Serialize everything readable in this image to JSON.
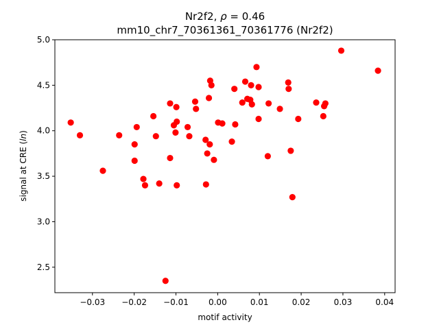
{
  "chart_data": {
    "type": "scatter",
    "title": "Nr2f2, ρ = 0.46",
    "subtitle": "mm10_chr7_70361361_70361776 (Nr2f2)",
    "xlabel": "motif activity",
    "ylabel": "signal at CRE (ln)",
    "xlim": [
      -0.039,
      0.0425
    ],
    "ylim": [
      2.22,
      5.0
    ],
    "xticks": [
      -0.03,
      -0.02,
      -0.01,
      0.0,
      0.01,
      0.02,
      0.03,
      0.04
    ],
    "xtick_labels": [
      "−0.03",
      "−0.02",
      "−0.01",
      "0.00",
      "0.01",
      "0.02",
      "0.03",
      "0.04"
    ],
    "yticks": [
      2.5,
      3.0,
      3.5,
      4.0,
      4.5,
      5.0
    ],
    "ytick_labels": [
      "2.5",
      "3.0",
      "3.5",
      "4.0",
      "4.5",
      "5.0"
    ],
    "grid": false,
    "marker_color": "#ff0000",
    "points": [
      {
        "x": -0.0352,
        "y": 4.09
      },
      {
        "x": -0.033,
        "y": 3.95
      },
      {
        "x": -0.0275,
        "y": 3.56
      },
      {
        "x": -0.0236,
        "y": 3.95
      },
      {
        "x": -0.0199,
        "y": 3.85
      },
      {
        "x": -0.0199,
        "y": 3.67
      },
      {
        "x": -0.0194,
        "y": 4.04
      },
      {
        "x": -0.0178,
        "y": 3.47
      },
      {
        "x": -0.0174,
        "y": 3.4
      },
      {
        "x": -0.0154,
        "y": 4.16
      },
      {
        "x": -0.0148,
        "y": 3.94
      },
      {
        "x": -0.014,
        "y": 3.42
      },
      {
        "x": -0.0125,
        "y": 2.35
      },
      {
        "x": -0.0114,
        "y": 4.3
      },
      {
        "x": -0.0114,
        "y": 3.7
      },
      {
        "x": -0.0105,
        "y": 4.06
      },
      {
        "x": -0.0101,
        "y": 3.98
      },
      {
        "x": -0.0099,
        "y": 4.26
      },
      {
        "x": -0.0098,
        "y": 4.1
      },
      {
        "x": -0.0098,
        "y": 3.4
      },
      {
        "x": -0.0072,
        "y": 4.04
      },
      {
        "x": -0.0068,
        "y": 3.94
      },
      {
        "x": -0.0054,
        "y": 4.32
      },
      {
        "x": -0.0052,
        "y": 4.24
      },
      {
        "x": -0.0029,
        "y": 3.9
      },
      {
        "x": -0.0028,
        "y": 3.41
      },
      {
        "x": -0.0025,
        "y": 3.75
      },
      {
        "x": -0.0021,
        "y": 4.36
      },
      {
        "x": -0.0019,
        "y": 3.85
      },
      {
        "x": -0.0018,
        "y": 4.55
      },
      {
        "x": -0.0015,
        "y": 4.5
      },
      {
        "x": -0.0009,
        "y": 3.68
      },
      {
        "x": 0.0001,
        "y": 4.09
      },
      {
        "x": 0.0011,
        "y": 4.08
      },
      {
        "x": 0.0034,
        "y": 3.88
      },
      {
        "x": 0.004,
        "y": 4.46
      },
      {
        "x": 0.0042,
        "y": 4.07
      },
      {
        "x": 0.0059,
        "y": 4.31
      },
      {
        "x": 0.0066,
        "y": 4.54
      },
      {
        "x": 0.0071,
        "y": 4.35
      },
      {
        "x": 0.0078,
        "y": 4.34
      },
      {
        "x": 0.008,
        "y": 4.5
      },
      {
        "x": 0.0082,
        "y": 4.29
      },
      {
        "x": 0.0093,
        "y": 4.7
      },
      {
        "x": 0.0098,
        "y": 4.48
      },
      {
        "x": 0.0098,
        "y": 4.13
      },
      {
        "x": 0.012,
        "y": 3.72
      },
      {
        "x": 0.0122,
        "y": 4.3
      },
      {
        "x": 0.0149,
        "y": 4.24
      },
      {
        "x": 0.0169,
        "y": 4.53
      },
      {
        "x": 0.017,
        "y": 4.46
      },
      {
        "x": 0.0175,
        "y": 3.78
      },
      {
        "x": 0.0179,
        "y": 3.27
      },
      {
        "x": 0.0193,
        "y": 4.13
      },
      {
        "x": 0.0236,
        "y": 4.31
      },
      {
        "x": 0.0253,
        "y": 4.16
      },
      {
        "x": 0.0255,
        "y": 4.27
      },
      {
        "x": 0.0258,
        "y": 4.3
      },
      {
        "x": 0.0296,
        "y": 4.88
      },
      {
        "x": 0.0384,
        "y": 4.66
      }
    ]
  }
}
